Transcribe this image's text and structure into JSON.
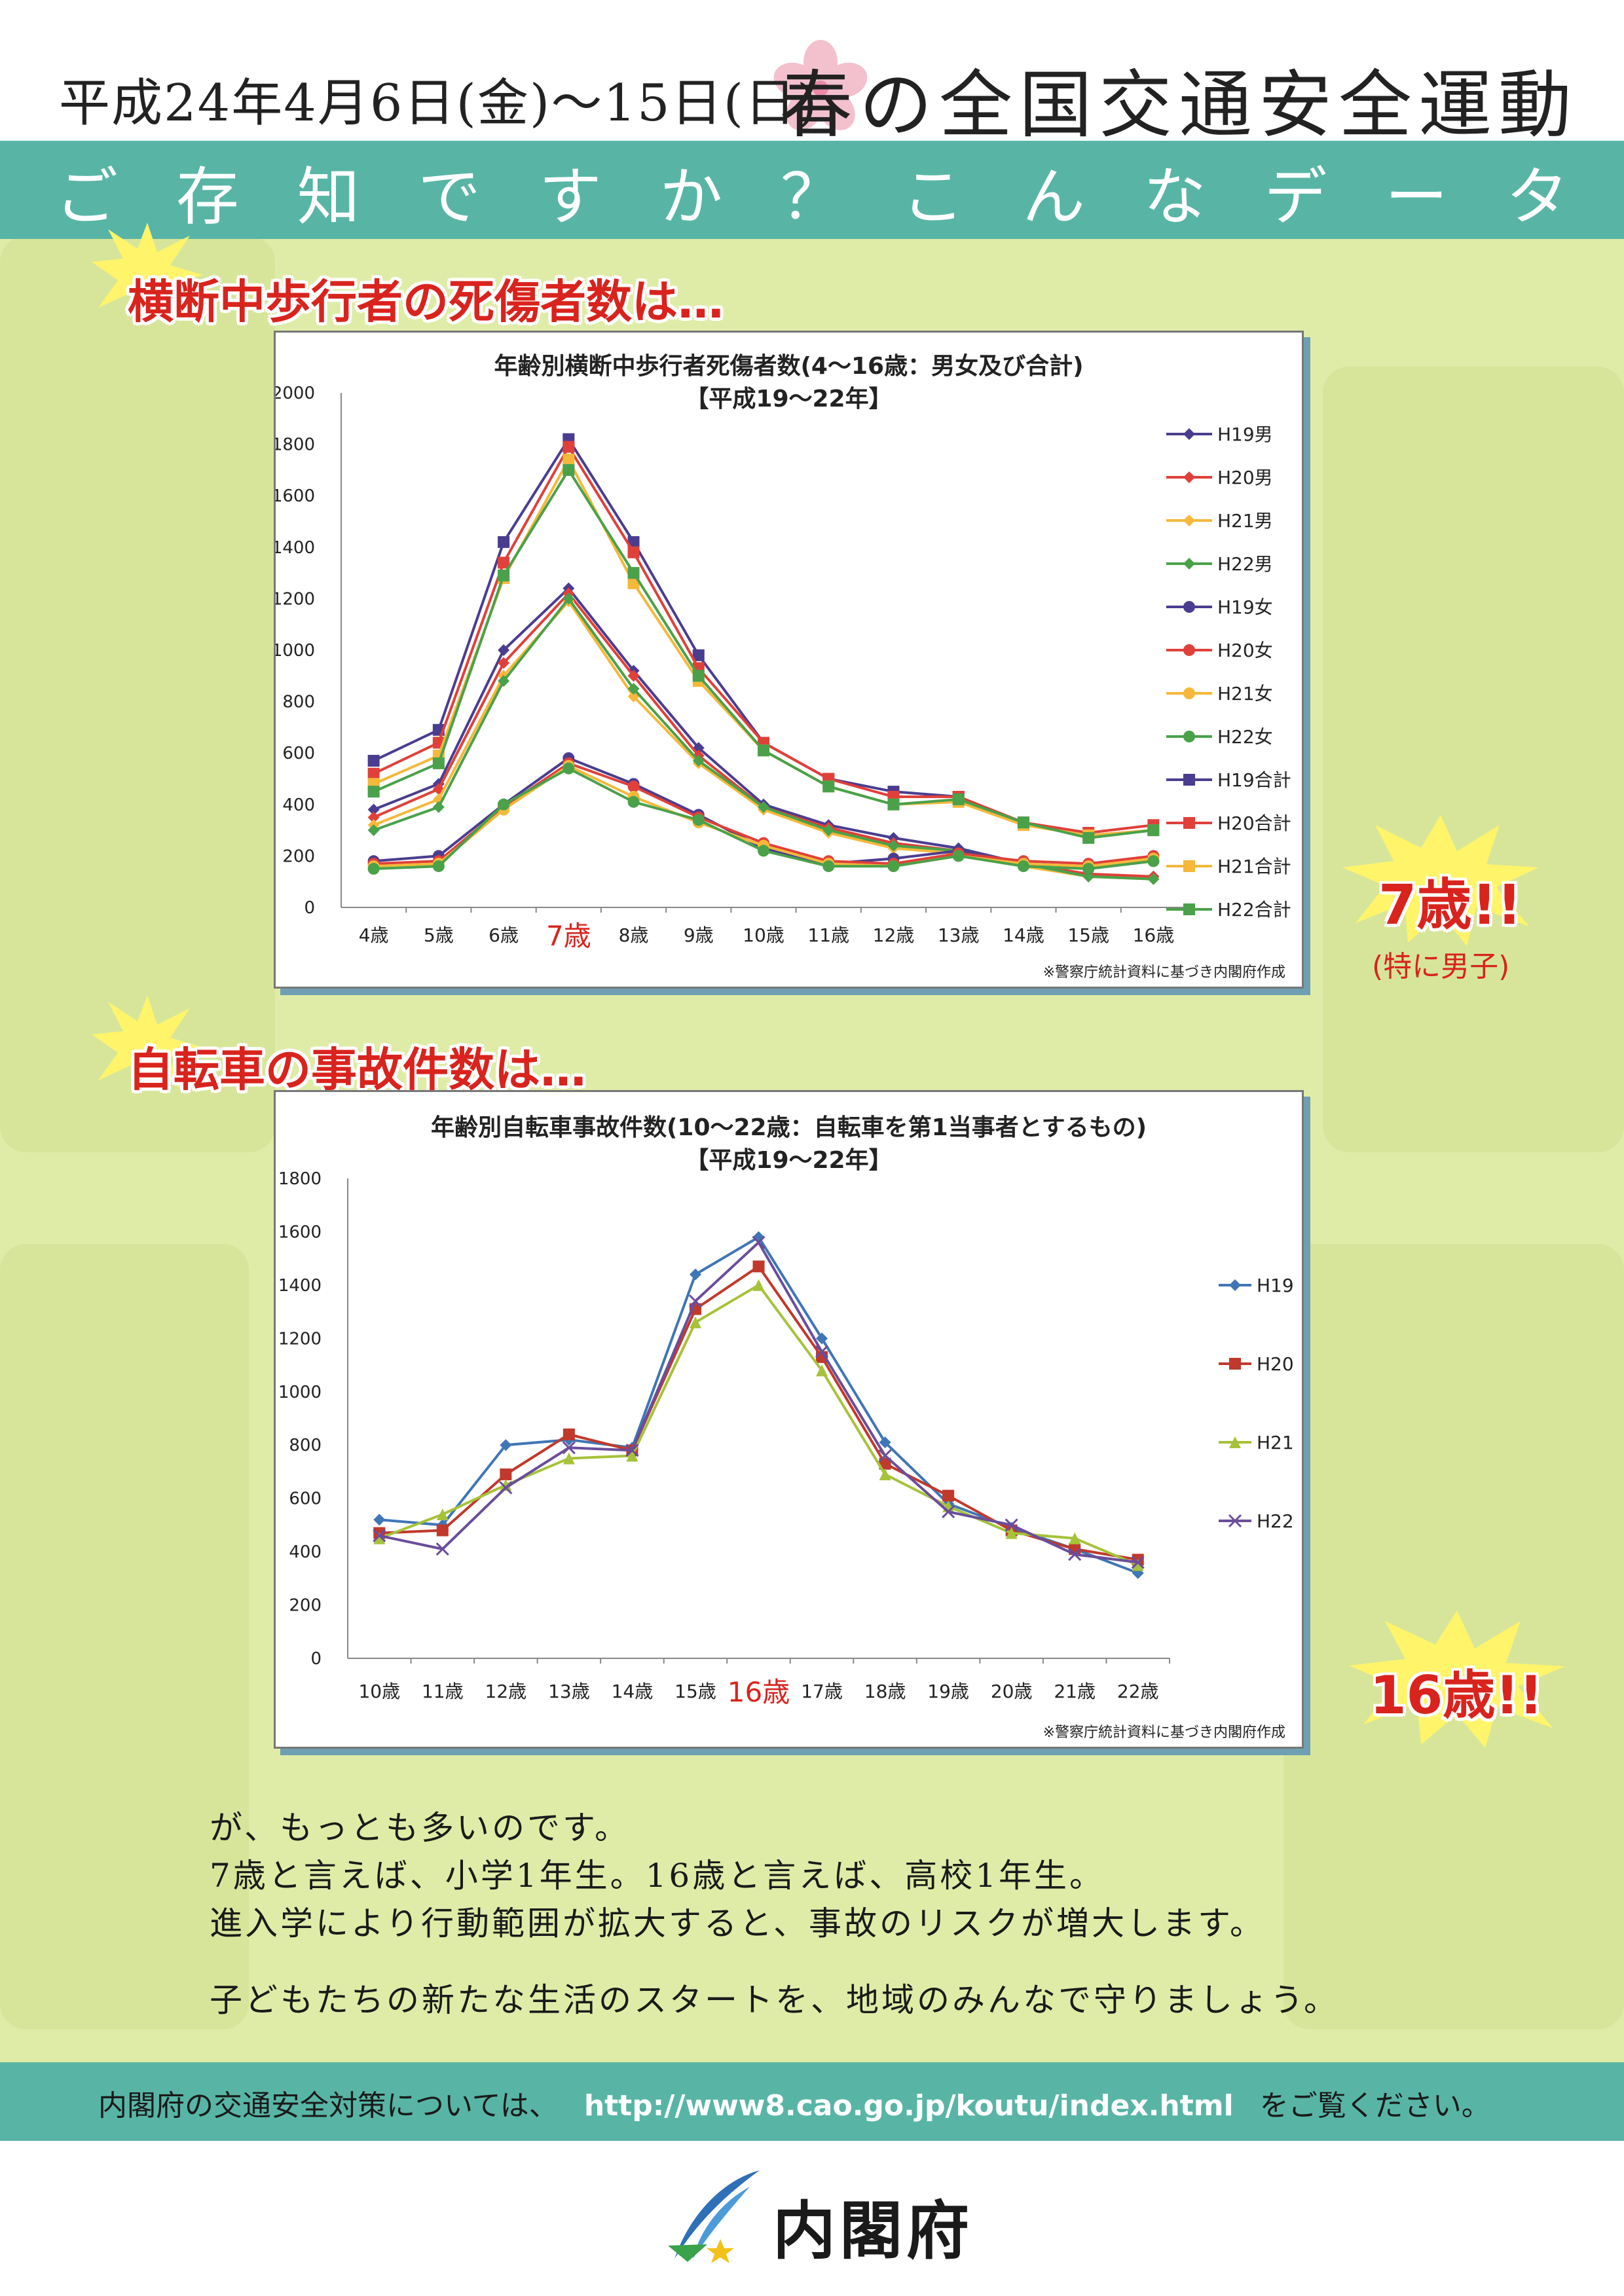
{
  "header": {
    "date_text": "平成24年4月6日(金)～15日(日)",
    "campaign_title": "春の全国交通安全運動"
  },
  "band": {
    "subtitle_chars": [
      "ご",
      "存",
      "知",
      "で",
      "す",
      "か",
      "？",
      "こ",
      "ん",
      "な",
      "デ",
      "ー",
      "タ"
    ]
  },
  "sections": [
    {
      "heading": "横断中歩行者の死傷者数は…"
    },
    {
      "heading": "自転車の事故件数は…"
    }
  ],
  "colors": {
    "teal": "#58b5a6",
    "background": "#dfeca8",
    "accent_red": "#d9231d",
    "H19": "#4a3d8f",
    "H20": "#e0403a",
    "H21": "#f5b83a",
    "H22": "#4aa14a",
    "bike_H19": "#3f76b5",
    "bike_H20": "#c0392b",
    "bike_H21": "#a6c23a",
    "bike_H22": "#6a4d9a"
  },
  "chart_data": [
    {
      "type": "line",
      "title": "年齢別横断中歩行者死傷者数(4～16歳：男女及び合計)",
      "subtitle": "【平成19～22年】",
      "categories": [
        "4歳",
        "5歳",
        "6歳",
        "7歳",
        "8歳",
        "9歳",
        "10歳",
        "11歳",
        "12歳",
        "13歳",
        "14歳",
        "15歳",
        "16歳"
      ],
      "highlight_category": "7歳",
      "ylim": [
        0,
        2000
      ],
      "yticks": [
        0,
        200,
        400,
        600,
        800,
        1000,
        1200,
        1400,
        1600,
        1800,
        2000
      ],
      "legend_position": "right",
      "grid": false,
      "series": [
        {
          "name": "H19男",
          "marker": "diamond",
          "color_key": "H19",
          "values": [
            380,
            480,
            1000,
            1240,
            920,
            620,
            400,
            320,
            270,
            230,
            170,
            120,
            120
          ]
        },
        {
          "name": "H20男",
          "marker": "diamond",
          "color_key": "H20",
          "values": [
            350,
            460,
            950,
            1220,
            900,
            590,
            390,
            310,
            250,
            220,
            170,
            130,
            120
          ]
        },
        {
          "name": "H21男",
          "marker": "diamond",
          "color_key": "H21",
          "values": [
            320,
            420,
            900,
            1190,
            820,
            560,
            380,
            290,
            230,
            210,
            160,
            120,
            110
          ]
        },
        {
          "name": "H22男",
          "marker": "diamond",
          "color_key": "H22",
          "values": [
            300,
            390,
            880,
            1200,
            850,
            570,
            390,
            300,
            240,
            220,
            170,
            120,
            110
          ]
        },
        {
          "name": "H19女",
          "marker": "circle",
          "color_key": "H19",
          "values": [
            180,
            200,
            400,
            580,
            480,
            360,
            230,
            170,
            190,
            220,
            170,
            150,
            180
          ]
        },
        {
          "name": "H20女",
          "marker": "circle",
          "color_key": "H20",
          "values": [
            170,
            180,
            390,
            560,
            470,
            350,
            250,
            180,
            170,
            210,
            180,
            170,
            200
          ]
        },
        {
          "name": "H21女",
          "marker": "circle",
          "color_key": "H21",
          "values": [
            160,
            170,
            380,
            550,
            430,
            330,
            240,
            170,
            160,
            200,
            170,
            160,
            190
          ]
        },
        {
          "name": "H22女",
          "marker": "circle",
          "color_key": "H22",
          "values": [
            150,
            160,
            400,
            540,
            410,
            340,
            220,
            160,
            160,
            200,
            160,
            150,
            180
          ]
        },
        {
          "name": "H19合計",
          "marker": "square",
          "color_key": "H19",
          "values": [
            570,
            690,
            1420,
            1820,
            1420,
            980,
            640,
            500,
            450,
            430,
            330,
            280,
            300
          ]
        },
        {
          "name": "H20合計",
          "marker": "square",
          "color_key": "H20",
          "values": [
            520,
            640,
            1340,
            1790,
            1380,
            930,
            640,
            500,
            430,
            430,
            330,
            290,
            320
          ]
        },
        {
          "name": "H21合計",
          "marker": "square",
          "color_key": "H21",
          "values": [
            480,
            590,
            1280,
            1740,
            1260,
            880,
            610,
            470,
            400,
            410,
            320,
            280,
            300
          ]
        },
        {
          "name": "H22合計",
          "marker": "square",
          "color_key": "H22",
          "values": [
            450,
            560,
            1290,
            1700,
            1300,
            900,
            610,
            470,
            400,
            420,
            330,
            270,
            300
          ]
        }
      ],
      "source": "※警察庁統計資料に基づき内閣府作成",
      "callout": "7歳!!",
      "callout_sub": "(特に男子)"
    },
    {
      "type": "line",
      "title": "年齢別自転車事故件数(10～22歳：自転車を第1当事者とするもの)",
      "subtitle": "【平成19～22年】",
      "categories": [
        "10歳",
        "11歳",
        "12歳",
        "13歳",
        "14歳",
        "15歳",
        "16歳",
        "17歳",
        "18歳",
        "19歳",
        "20歳",
        "21歳",
        "22歳"
      ],
      "highlight_category": "16歳",
      "ylim": [
        0,
        1800
      ],
      "yticks": [
        0,
        200,
        400,
        600,
        800,
        1000,
        1200,
        1400,
        1600,
        1800
      ],
      "legend_position": "right",
      "grid": false,
      "series": [
        {
          "name": "H19",
          "marker": "diamond",
          "color_key": "bike_H19",
          "values": [
            520,
            500,
            800,
            820,
            790,
            1440,
            1580,
            1200,
            810,
            580,
            490,
            410,
            320
          ]
        },
        {
          "name": "H20",
          "marker": "square",
          "color_key": "bike_H20",
          "values": [
            470,
            480,
            690,
            840,
            780,
            1310,
            1470,
            1130,
            730,
            610,
            480,
            410,
            370
          ]
        },
        {
          "name": "H21",
          "marker": "triangle",
          "color_key": "bike_H21",
          "values": [
            450,
            540,
            650,
            750,
            760,
            1260,
            1400,
            1080,
            690,
            570,
            470,
            450,
            350
          ]
        },
        {
          "name": "H22",
          "marker": "x",
          "color_key": "bike_H22",
          "values": [
            460,
            410,
            640,
            790,
            780,
            1340,
            1560,
            1150,
            760,
            550,
            500,
            390,
            360
          ]
        }
      ],
      "source": "※警察庁統計資料に基づき内閣府作成",
      "callout": "16歳!!"
    }
  ],
  "body_text": [
    "が、もっとも多いのです。",
    "7歳と言えば、小学1年生。16歳と言えば、高校1年生。",
    "進入学により行動範囲が拡大すると、事故のリスクが増大します。",
    "子どもたちの新たな生活のスタートを、地域のみんなで守りましょう。"
  ],
  "footer": {
    "prefix": "内閣府の交通安全対策については、",
    "url": "http://www8.cao.go.jp/koutu/index.html",
    "suffix": "をご覧ください。"
  },
  "logo": {
    "text": "内閣府",
    "icon": "cabinet-office-logo-icon"
  }
}
